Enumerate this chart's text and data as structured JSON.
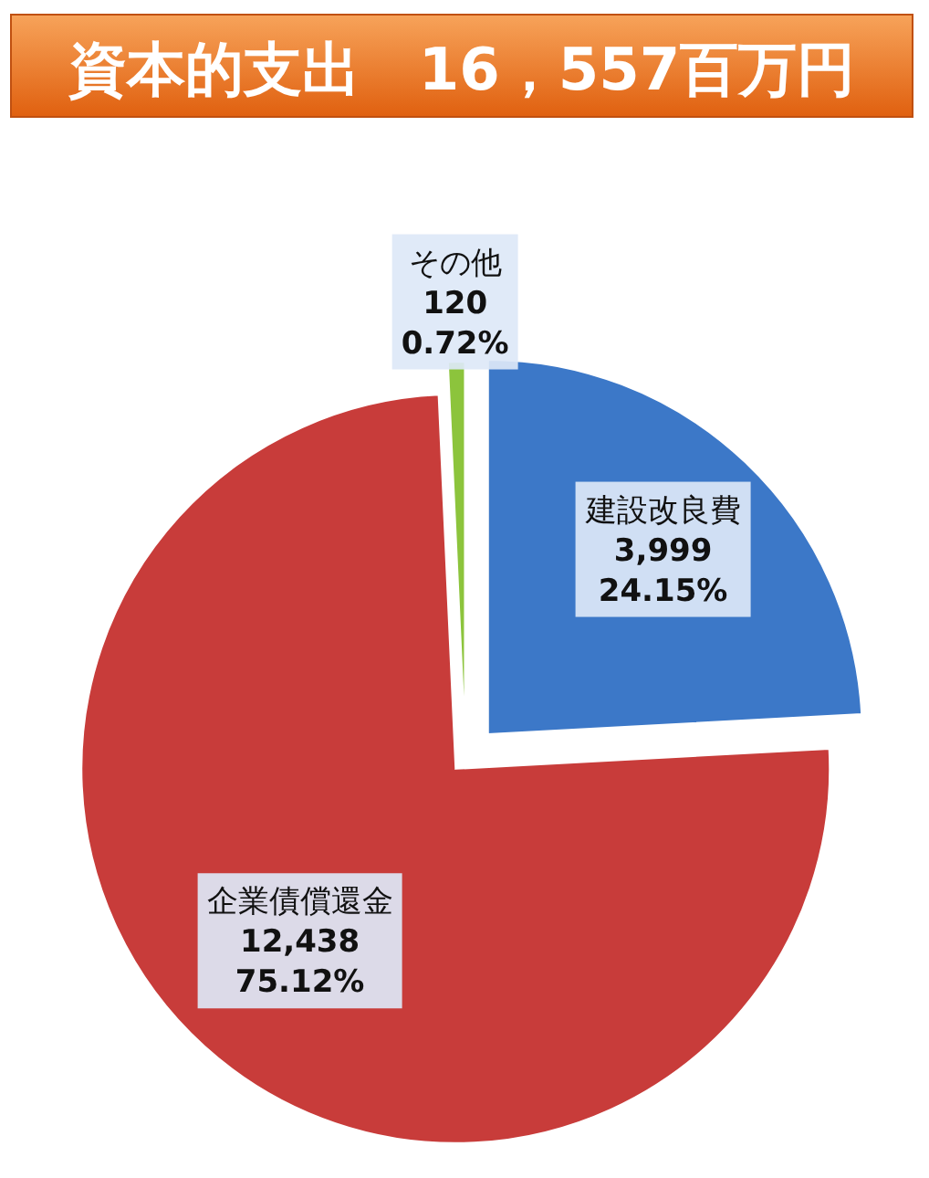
{
  "chart_data": {
    "type": "pie",
    "title": "資本的支出　16，557百万円",
    "categories": [
      "建設改良費",
      "企業債償還金",
      "その他"
    ],
    "values": [
      3999,
      12438,
      120
    ],
    "colors": [
      "#3c78c8",
      "#c83c3a",
      "#8cc43c"
    ],
    "value_labels": [
      "3,999\n24.15%",
      "12,438\n75.12%",
      "120\n0.72%"
    ]
  }
}
